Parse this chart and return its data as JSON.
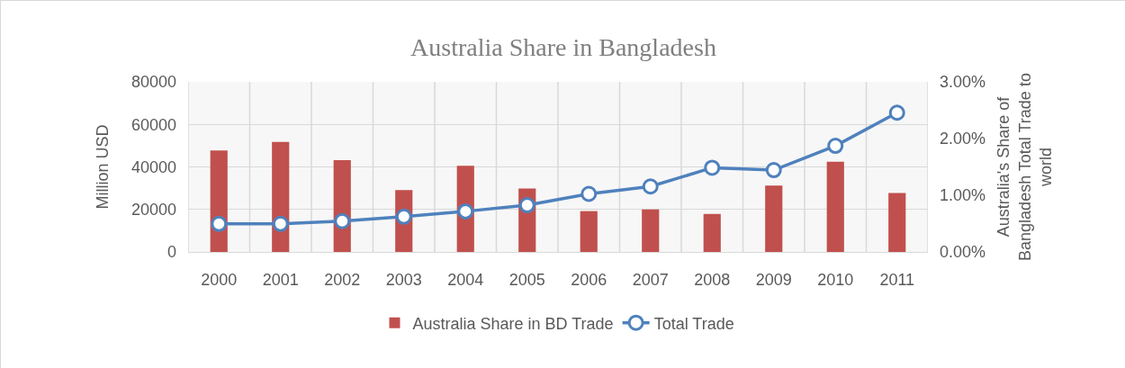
{
  "chart_data": {
    "type": "bar",
    "title": "Australia Share in Bangladesh",
    "ylabel": "Million USD",
    "y2label": "Australia's Share of\nBangladesh Total Trade to\nworld",
    "categories": [
      "2000",
      "2001",
      "2002",
      "2003",
      "2004",
      "2005",
      "2006",
      "2007",
      "2008",
      "2009",
      "2010",
      "2011"
    ],
    "series": [
      {
        "name": "Australia Share in BD Trade",
        "axis": "y2",
        "color": "#c0504d",
        "values": [
          1.79,
          1.94,
          1.62,
          1.09,
          1.52,
          1.12,
          0.72,
          0.75,
          0.67,
          1.17,
          1.59,
          1.04
        ]
      },
      {
        "name": "Total Trade",
        "type": "line",
        "axis": "y",
        "color": "#4f81bd",
        "marker": "circle",
        "values": [
          13200,
          13200,
          14500,
          16600,
          19100,
          22000,
          27300,
          30800,
          39600,
          38500,
          49900,
          65500
        ]
      }
    ],
    "ylim": [
      0,
      80000
    ],
    "yticks": [
      0,
      20000,
      40000,
      60000,
      80000
    ],
    "y2lim": [
      0,
      3
    ],
    "y2ticks": [
      {
        "value": 0,
        "label": "0.00%"
      },
      {
        "value": 1,
        "label": "1.00%"
      },
      {
        "value": 2,
        "label": "2.00%"
      },
      {
        "value": 3,
        "label": "3.00%"
      }
    ],
    "grid": true,
    "legend": "bottom"
  }
}
